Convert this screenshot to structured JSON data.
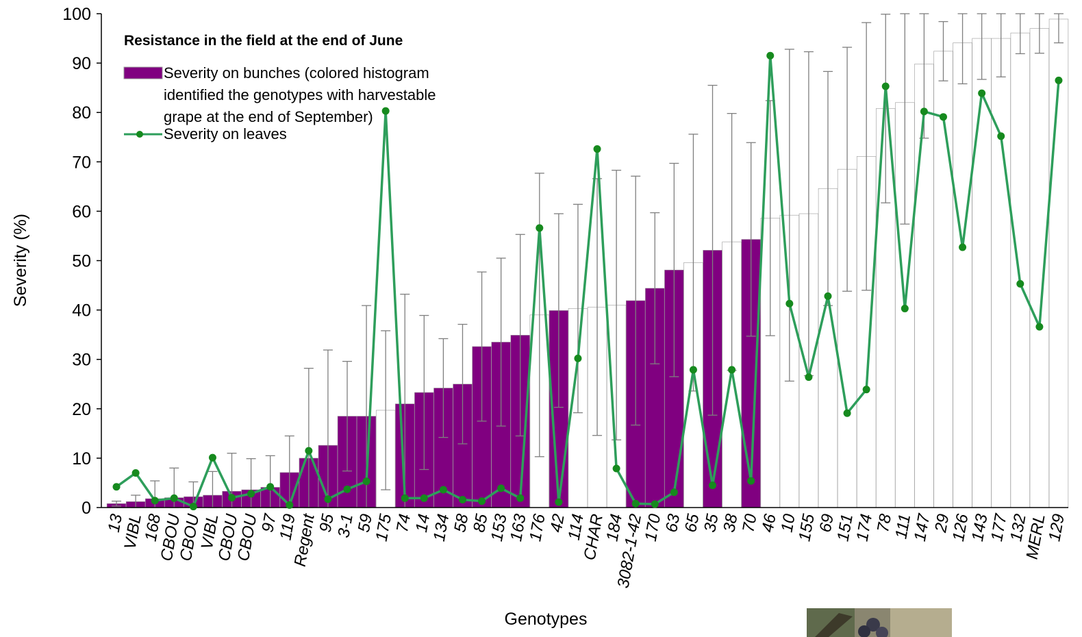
{
  "colors": {
    "harvestable_bar": "#800080",
    "other_bar": "#ffffff",
    "bar_outline": "#999999",
    "leaves_line": "#2e9e5b",
    "leaves_marker": "#168a1e",
    "error_bar": "#7f7f7f"
  },
  "chart_data": {
    "type": "bar",
    "title": "",
    "xlabel": "Genotypes",
    "ylabel": "Severity (%)",
    "ylim": [
      0,
      100
    ],
    "yticks": [
      0,
      10,
      20,
      30,
      40,
      50,
      60,
      70,
      80,
      90,
      100
    ],
    "grid": false,
    "legend": {
      "position": "top-left",
      "title": "Resistance in the field at the end of June",
      "items": [
        {
          "marker": "bar",
          "label_lines": [
            "Severity on bunches (colored histogram",
            "identified the genotypes with harvestable",
            "grape at the end of September)"
          ]
        },
        {
          "marker": "line",
          "label_lines": [
            "Severity on leaves"
          ]
        }
      ]
    },
    "categories": [
      "13",
      "VIBL",
      "168",
      "CBOU",
      "CBOU",
      "VIBL",
      "CBOU",
      "CBOU",
      "97",
      "119",
      "Regent",
      "95",
      "3-1",
      "59",
      "175",
      "74",
      "14",
      "134",
      "58",
      "85",
      "153",
      "163",
      "176",
      "42",
      "114",
      "CHAR",
      "184",
      "3082-1-42",
      "170",
      "63",
      "65",
      "35",
      "38",
      "70",
      "46",
      "10",
      "155",
      "69",
      "151",
      "174",
      "78",
      "111",
      "147",
      "29",
      "126",
      "143",
      "177",
      "132",
      "MERL",
      "129"
    ],
    "harvestable": [
      true,
      true,
      true,
      true,
      true,
      true,
      true,
      true,
      true,
      true,
      true,
      true,
      true,
      true,
      false,
      true,
      true,
      true,
      true,
      true,
      true,
      true,
      false,
      true,
      false,
      false,
      false,
      true,
      true,
      true,
      false,
      true,
      false,
      true,
      false,
      false,
      false,
      false,
      false,
      false,
      false,
      false,
      false,
      false,
      false,
      false,
      false,
      false,
      false,
      false
    ],
    "series": [
      {
        "name": "Severity on bunches (colored histogram identified the genotypes with harvestable grape at the end of September)",
        "type": "bar",
        "values": [
          0.8,
          1.2,
          1.8,
          2.0,
          2.2,
          2.5,
          3.3,
          3.6,
          4.1,
          7.1,
          10.0,
          12.6,
          18.5,
          18.5,
          19.7,
          21.0,
          23.3,
          24.2,
          25.0,
          32.6,
          33.5,
          34.9,
          39.0,
          39.9,
          40.3,
          40.6,
          41.0,
          41.9,
          44.4,
          48.1,
          49.6,
          52.1,
          53.8,
          54.3,
          58.6,
          59.2,
          59.5,
          64.6,
          68.5,
          71.1,
          80.8,
          82.0,
          89.8,
          92.4,
          94.1,
          95.0,
          95.0,
          96.1,
          97.0,
          98.9
        ],
        "error": [
          0.5,
          1.3,
          3.6,
          6.0,
          3.0,
          4.8,
          7.7,
          6.3,
          6.4,
          7.4,
          18.2,
          19.3,
          11.1,
          22.4,
          16.1,
          22.2,
          15.6,
          10.0,
          12.1,
          15.1,
          17.0,
          20.4,
          28.7,
          19.6,
          21.1,
          26.0,
          27.3,
          25.2,
          15.3,
          21.6,
          26.0,
          33.4,
          26.0,
          19.6,
          23.8,
          33.6,
          32.8,
          23.7,
          24.7,
          27.1,
          19.1,
          24.6,
          15.0,
          6.0,
          8.3,
          8.3,
          7.8,
          4.2,
          5.0,
          4.8
        ]
      },
      {
        "name": "Severity on leaves",
        "type": "line",
        "values": [
          4.2,
          7.0,
          1.4,
          1.9,
          0.2,
          10.1,
          2.0,
          2.8,
          4.2,
          0.5,
          11.5,
          1.7,
          3.7,
          5.3,
          80.3,
          1.9,
          1.9,
          3.6,
          1.6,
          1.3,
          3.9,
          1.9,
          56.6,
          1.1,
          30.2,
          72.6,
          7.9,
          0.8,
          0.7,
          3.1,
          27.9,
          4.5,
          27.9,
          5.4,
          91.5,
          41.3,
          26.4,
          42.8,
          19.1,
          23.9,
          85.3,
          40.3,
          80.2,
          79.1,
          52.7,
          83.9,
          75.2,
          45.3,
          36.6,
          86.5
        ]
      }
    ]
  }
}
